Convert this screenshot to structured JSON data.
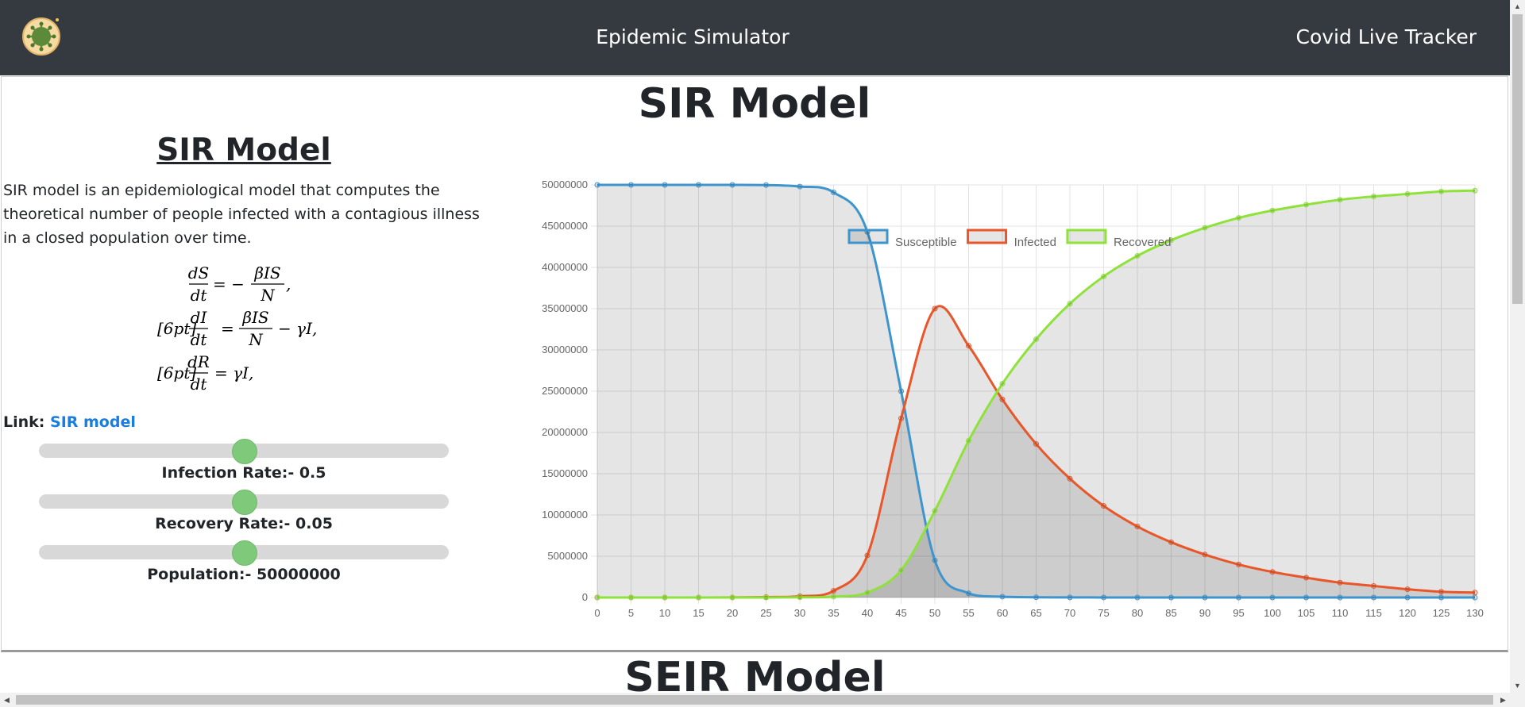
{
  "navbar": {
    "logo_icon": "virus-logo-icon",
    "title": "Epidemic Simulator",
    "live_tracker_link": "Covid Live Tracker",
    "background": "#343a40"
  },
  "section": {
    "heading": "SIR Model",
    "subheading": "SIR Model",
    "description": "SIR model is an epidemiological model that computes the theoretical number of people infected with a contagious illness in a closed population over time.",
    "equations": {
      "eq1_lhs_num": "dS",
      "eq1_lhs_den": "dt",
      "eq1_eq": "= −",
      "eq1_rhs_num": "βIS",
      "eq1_rhs_den": "N",
      "eq1_tail": ",",
      "eq2_prefix": "[6pt]",
      "eq2_lhs_num": "dI",
      "eq2_lhs_den": "dt",
      "eq2_eq": "=",
      "eq2_rhs_num": "βIS",
      "eq2_rhs_den": "N",
      "eq2_tail": "− γI,",
      "eq3_prefix": "[6pt]",
      "eq3_lhs_num": "dR",
      "eq3_lhs_den": "dt",
      "eq3_tail": "= γI,"
    },
    "link_label": "Link:",
    "link_text": "SIR model",
    "sliders": [
      {
        "label": "Infection Rate:- 0.5",
        "value": 0.5,
        "fraction": 0.5
      },
      {
        "label": "Recovery Rate:- 0.05",
        "value": 0.05,
        "fraction": 0.5
      },
      {
        "label": "Population:- 50000000",
        "value": 50000000,
        "fraction": 0.5
      }
    ]
  },
  "next_section": {
    "heading": "SEIR Model"
  },
  "chart_data": {
    "type": "line",
    "title": "",
    "xlabel": "",
    "ylabel": "",
    "x": [
      0,
      5,
      10,
      15,
      20,
      25,
      30,
      35,
      40,
      45,
      50,
      55,
      60,
      65,
      70,
      75,
      80,
      85,
      90,
      95,
      100,
      105,
      110,
      115,
      120,
      125,
      130
    ],
    "ylim": [
      0,
      50000000
    ],
    "yticks": [
      0,
      5000000,
      10000000,
      15000000,
      20000000,
      25000000,
      30000000,
      35000000,
      40000000,
      45000000,
      50000000
    ],
    "grid": true,
    "legend_position": "top",
    "series": [
      {
        "name": "Susceptible",
        "color": "#3e95cd",
        "values": [
          50000000,
          50000000,
          50000000,
          50000000,
          50000000,
          49980000,
          49800000,
          49100000,
          44300000,
          25000000,
          4500000,
          500000,
          100000,
          30000,
          10000,
          5000,
          3000,
          2000,
          1000,
          1000,
          1000,
          1000,
          1000,
          1000,
          1000,
          1000,
          1000
        ]
      },
      {
        "name": "Infected",
        "color": "#e8562a",
        "values": [
          0,
          0,
          0,
          0,
          10000,
          50000,
          150000,
          800000,
          5100000,
          21700000,
          35000000,
          30500000,
          24000000,
          18600000,
          14400000,
          11100000,
          8600000,
          6700000,
          5200000,
          4000000,
          3100000,
          2400000,
          1800000,
          1400000,
          1000000,
          700000,
          600000
        ]
      },
      {
        "name": "Recovered",
        "color": "#8ee23a",
        "values": [
          0,
          0,
          0,
          0,
          0,
          0,
          20000,
          100000,
          600000,
          3300000,
          10500000,
          19000000,
          25900000,
          31300000,
          35600000,
          38900000,
          41400000,
          43300000,
          44800000,
          46000000,
          46900000,
          47600000,
          48200000,
          48600000,
          48900000,
          49200000,
          49300000
        ]
      }
    ]
  }
}
